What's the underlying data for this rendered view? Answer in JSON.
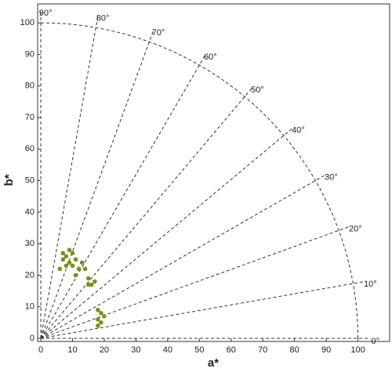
{
  "chart_data": {
    "type": "scatter",
    "x_label": "a*",
    "y_label": "b*",
    "xlim": [
      -1,
      110
    ],
    "ylim": [
      -1,
      106
    ],
    "xticks": [
      0,
      10,
      20,
      30,
      40,
      50,
      60,
      70,
      80,
      90,
      100
    ],
    "yticks": [
      0,
      10,
      20,
      30,
      40,
      50,
      60,
      70,
      80,
      90,
      100
    ],
    "chroma_circle": 100,
    "angle_ticks": [
      {
        "value": 0,
        "label": "0°"
      },
      {
        "value": 10,
        "label": "10°"
      },
      {
        "value": 20,
        "label": "20°"
      },
      {
        "value": 30,
        "label": "30°"
      },
      {
        "value": 40,
        "label": "40°"
      },
      {
        "value": 50,
        "label": "50°"
      },
      {
        "value": 60,
        "label": "60°"
      },
      {
        "value": 70,
        "label": "70°"
      },
      {
        "value": 80,
        "label": "80°"
      },
      {
        "value": 90,
        "label": "90°"
      }
    ],
    "color": "#7f8c1e",
    "x": [
      8,
      9,
      7,
      10,
      11,
      9,
      8,
      10,
      12,
      13,
      14,
      11,
      6,
      7,
      15,
      16,
      17,
      15,
      18,
      19,
      18,
      19,
      20,
      18
    ],
    "values": [
      26,
      28,
      27,
      27,
      25,
      24,
      23,
      23,
      22,
      24,
      22,
      20,
      22,
      25,
      19,
      17,
      18,
      17,
      9,
      8,
      6,
      5,
      7,
      4
    ]
  }
}
